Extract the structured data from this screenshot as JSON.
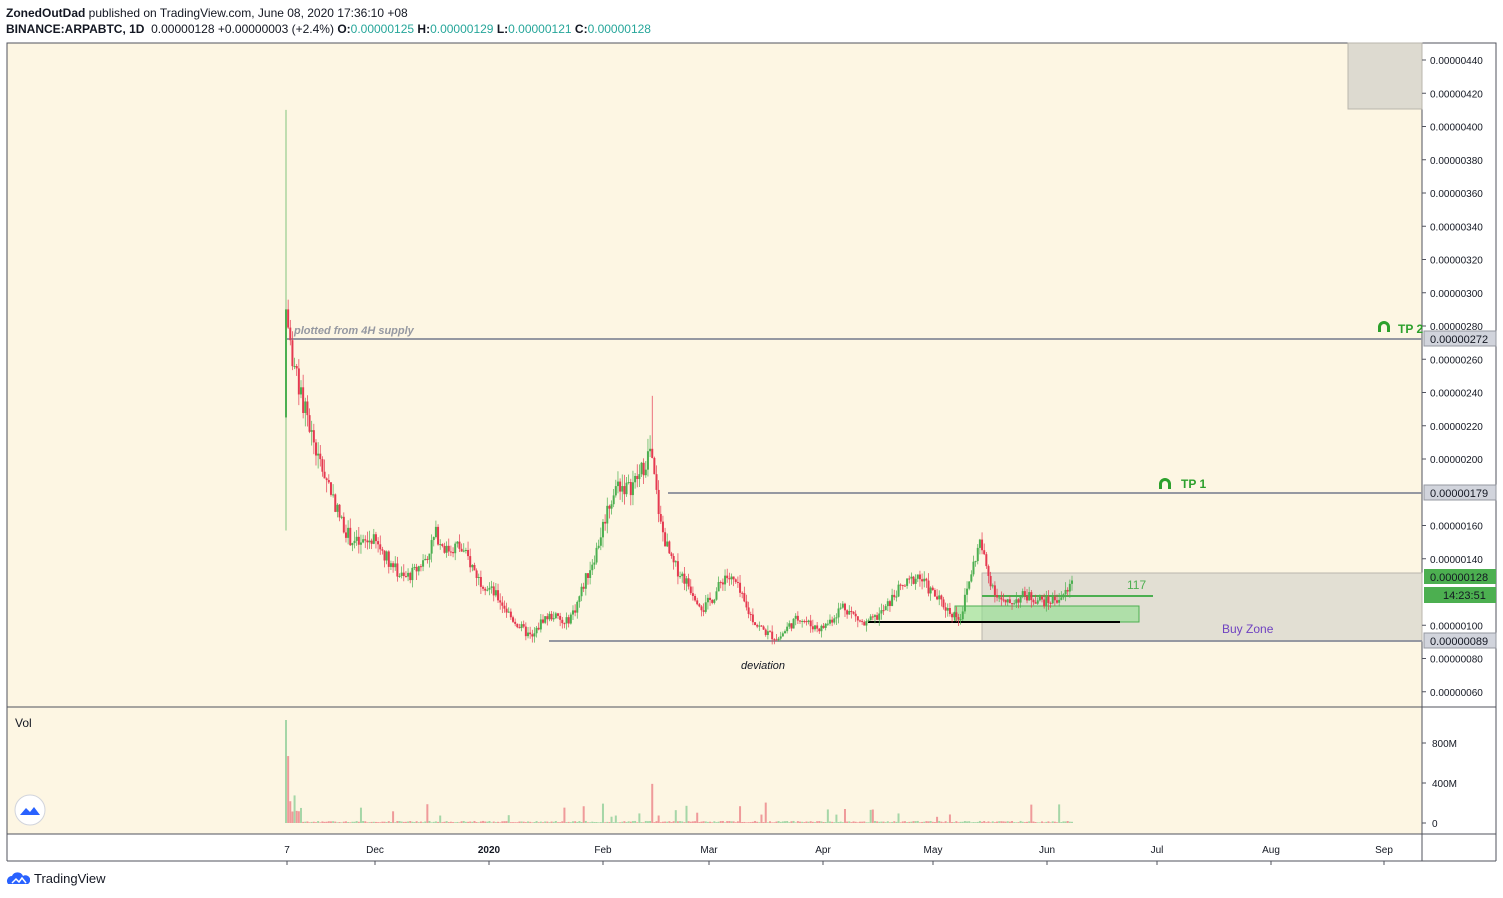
{
  "header": {
    "author": "ZonedOutDad",
    "published": "published on TradingView.com, June 08, 2020 17:36:10 +08",
    "symbol": "BINANCE:ARPABTC, 1D",
    "last": "0.00000128",
    "change": "+0.00000003 (+2.4%)",
    "o_label": "O:",
    "o": "0.00000125",
    "h_label": "H:",
    "h": "0.00000129",
    "l_label": "L:",
    "l": "0.00000121",
    "c_label": "C:",
    "c": "0.00000128"
  },
  "brand": "TradingView",
  "chart_data": {
    "type": "candlestick",
    "symbol": "BINANCE:ARPABTC",
    "interval": "1D",
    "x_ticks": [
      "7",
      "Dec",
      "2020",
      "Feb",
      "Mar",
      "Apr",
      "May",
      "Jun",
      "Jul",
      "Aug",
      "Sep"
    ],
    "y_ticks": [
      "0.00000440",
      "0.00000420",
      "0.00000400",
      "0.00000380",
      "0.00000360",
      "0.00000340",
      "0.00000320",
      "0.00000300",
      "0.00000280",
      "0.00000260",
      "0.00000240",
      "0.00000220",
      "0.00000200",
      "0.00000160",
      "0.00000140",
      "0.00000100",
      "0.00000080",
      "0.00000060"
    ],
    "ylim": [
      5.2e-07,
      4.5e-06
    ],
    "price_labels": {
      "tp2_level": "0.00000272",
      "tp1_level": "0.00000179",
      "current": "0.00000128",
      "countdown": "14:23:51",
      "buy_zone_low": "0.00000089"
    },
    "annotations": {
      "supply_note": "plotted from 4H supply",
      "tp1": "TP 1",
      "tp2": "TP 2",
      "count": "117",
      "buy_zone": "Buy Zone",
      "deviation": "deviation"
    },
    "levels": [
      2.72e-06,
      1.79e-06,
      8.9e-07
    ],
    "key_prices": {
      "ath_high": 4.1e-06,
      "start_open": 2.9e-06,
      "start_low": 1.57e-06,
      "feb_high": 2.38e-06,
      "range_support": 1.02e-06
    },
    "volume": {
      "label": "Vol",
      "y_ticks": [
        "800M",
        "400M",
        "0"
      ],
      "max": 1000,
      "spike_first": 1000,
      "spike_second": 650
    },
    "colors": {
      "up": "#4caf50",
      "down": "#e53950",
      "background": "#fdf6e3",
      "level": "#9598a1",
      "buy_zone_text": "#6f42c1",
      "tp": "#2ca02c"
    }
  }
}
